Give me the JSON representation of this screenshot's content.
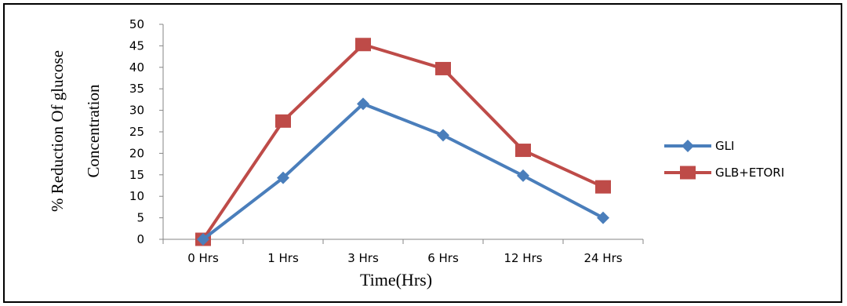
{
  "chart_data": {
    "type": "line",
    "categories": [
      "0 Hrs",
      "1 Hrs",
      "3 Hrs",
      "6 Hrs",
      "12 Hrs",
      "24 Hrs"
    ],
    "series": [
      {
        "name": "GLI",
        "values": [
          0,
          14.3,
          31.5,
          24.2,
          14.8,
          5
        ],
        "color": "#4a7ebb",
        "marker": "diamond"
      },
      {
        "name": "GLB+ETORI",
        "values": [
          0,
          27.5,
          45.3,
          39.7,
          20.7,
          12.2
        ],
        "color": "#be4b48",
        "marker": "square"
      }
    ],
    "title": "",
    "ylabel_line1": "% Reduction Of glucose",
    "ylabel_line2": "Concentration",
    "xlabel": "Time(Hrs)",
    "ylim": [
      0,
      50
    ],
    "yticks": [
      "0",
      "5",
      "10",
      "15",
      "20",
      "25",
      "30",
      "35",
      "40",
      "45",
      "50"
    ],
    "grid": false,
    "legend_position": "right"
  }
}
